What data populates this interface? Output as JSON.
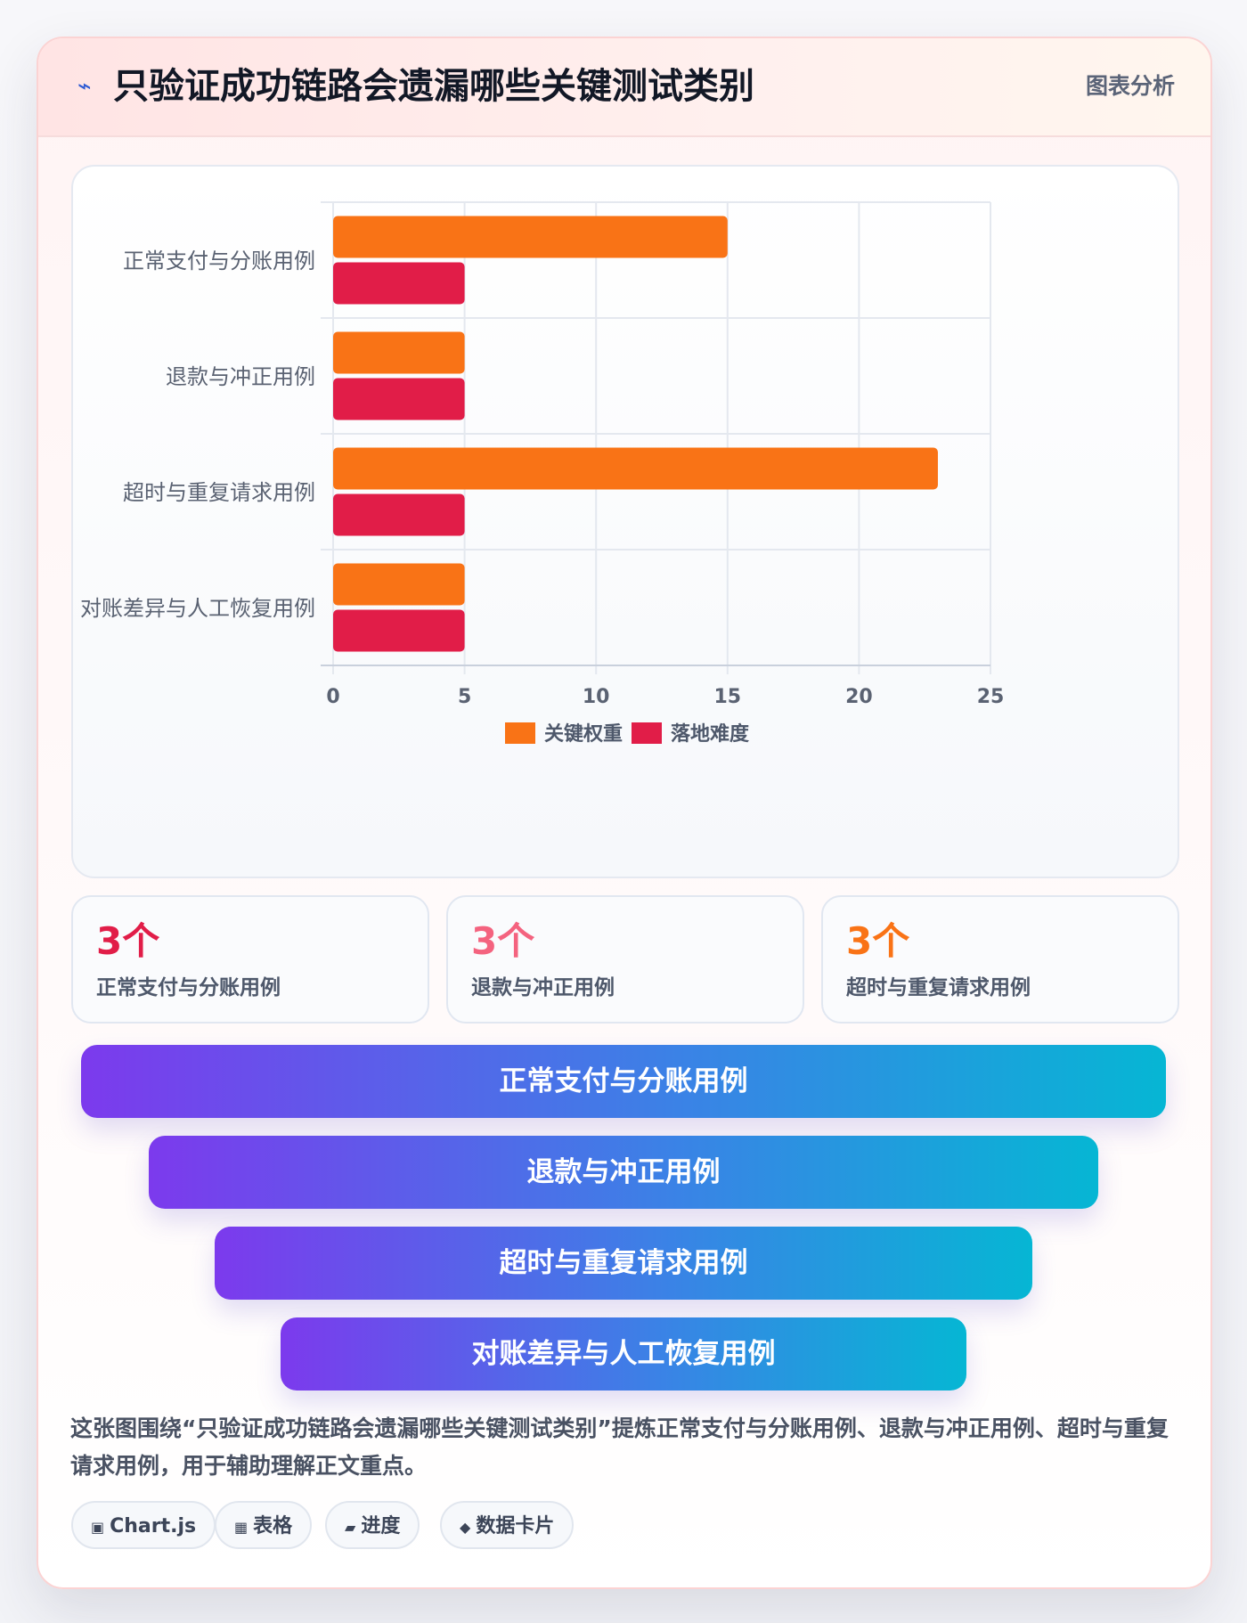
{
  "header": {
    "icon": "lightning-icon",
    "title": "只验证成功链路会遗漏哪些关键测试类别",
    "badge": "图表分析"
  },
  "chart_data": {
    "type": "bar",
    "orientation": "horizontal",
    "categories": [
      "正常支付与分账用例",
      "退款与冲正用例",
      "超时与重复请求用例",
      "对账差异与人工恢复用例"
    ],
    "series": [
      {
        "name": "关键权重",
        "values": [
          15,
          5,
          23,
          5
        ],
        "color": "#f97316"
      },
      {
        "name": "落地难度",
        "values": [
          5,
          5,
          5,
          5
        ],
        "color": "#e11d48"
      }
    ],
    "xlim": [
      0,
      25
    ],
    "xticks": [
      0,
      5,
      10,
      15,
      20,
      25
    ],
    "grid": true,
    "legend_position": "bottom"
  },
  "stats": [
    {
      "value": "3个",
      "label": "正常支付与分账用例",
      "color": "#e11d48"
    },
    {
      "value": "3个",
      "label": "退款与冲正用例",
      "color": "#f4637f"
    },
    {
      "value": "3个",
      "label": "超时与重复请求用例",
      "color": "#f97316"
    }
  ],
  "funnel": [
    {
      "label": "正常支付与分账用例"
    },
    {
      "label": "退款与冲正用例"
    },
    {
      "label": "超时与重复请求用例"
    },
    {
      "label": "对账差异与人工恢复用例"
    }
  ],
  "summary": "这张图围绕“只验证成功链路会遗漏哪些关键测试类别”提炼正常支付与分账用例、退款与冲正用例、超时与重复请求用例，用于辅助理解正文重点。",
  "tags": [
    {
      "icon": "chip-icon",
      "glyph": "▣",
      "label": "Chart.js"
    },
    {
      "icon": "table-icon",
      "glyph": "▦",
      "label": "表格"
    },
    {
      "icon": "progress-icon",
      "glyph": "▰",
      "label": "进度"
    },
    {
      "icon": "diamond-icon",
      "glyph": "◆",
      "label": "数据卡片"
    }
  ]
}
